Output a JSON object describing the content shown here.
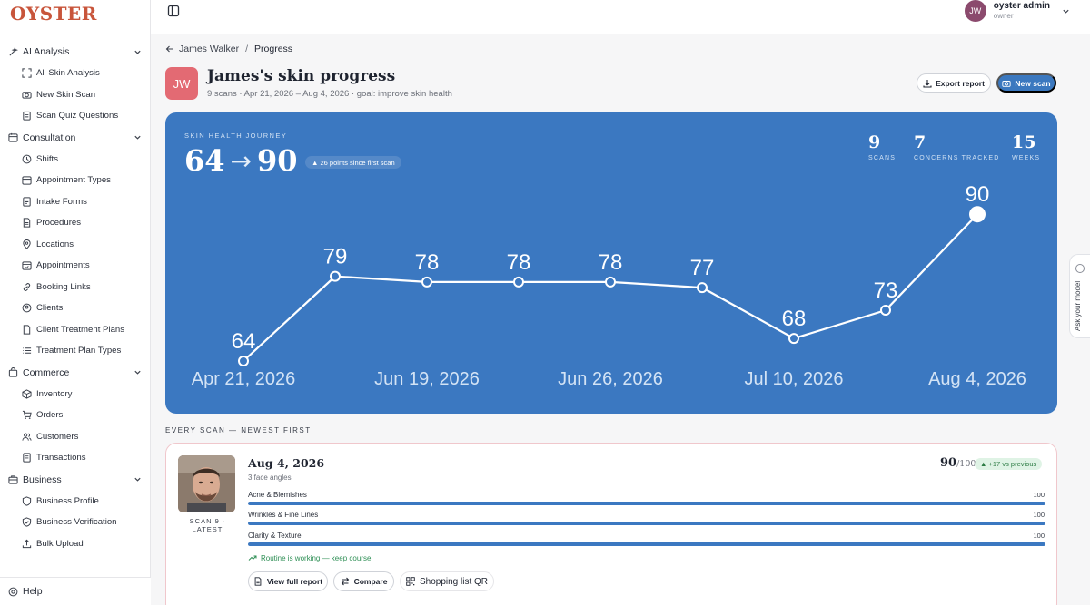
{
  "brand": {
    "logo": "OYSTER"
  },
  "sidebar": {
    "groups": [
      {
        "label": "AI Analysis",
        "icon": "sparkle-icon",
        "items": [
          {
            "label": "All Skin Analysis",
            "icon": "scan-icon"
          },
          {
            "label": "New Skin Scan",
            "icon": "camera-icon"
          },
          {
            "label": "Scan Quiz Questions",
            "icon": "clipboard-icon"
          }
        ]
      },
      {
        "label": "Consultation",
        "icon": "calendar-icon",
        "items": [
          {
            "label": "Shifts",
            "icon": "clock-icon"
          },
          {
            "label": "Appointment Types",
            "icon": "calendar-icon"
          },
          {
            "label": "Intake Forms",
            "icon": "form-icon"
          },
          {
            "label": "Procedures",
            "icon": "document-icon"
          },
          {
            "label": "Locations",
            "icon": "pin-icon"
          },
          {
            "label": "Appointments",
            "icon": "calendar-check-icon"
          },
          {
            "label": "Booking Links",
            "icon": "link-icon"
          },
          {
            "label": "Clients",
            "icon": "user-icon"
          },
          {
            "label": "Client Treatment Plans",
            "icon": "document-icon"
          },
          {
            "label": "Treatment Plan Types",
            "icon": "list-icon"
          }
        ]
      },
      {
        "label": "Commerce",
        "icon": "bag-icon",
        "items": [
          {
            "label": "Inventory",
            "icon": "box-icon"
          },
          {
            "label": "Orders",
            "icon": "cart-icon"
          },
          {
            "label": "Customers",
            "icon": "users-icon"
          },
          {
            "label": "Transactions",
            "icon": "receipt-icon"
          }
        ]
      },
      {
        "label": "Business",
        "icon": "briefcase-icon",
        "items": [
          {
            "label": "Business Profile",
            "icon": "shield-icon"
          },
          {
            "label": "Business Verification",
            "icon": "shield-check-icon"
          },
          {
            "label": "Bulk Upload",
            "icon": "upload-icon"
          }
        ]
      }
    ],
    "help": "Help"
  },
  "topbar": {
    "user_initials": "JW",
    "user_name": "oyster admin",
    "user_role": "owner"
  },
  "breadcrumb": {
    "parent": "James Walker",
    "separator": "/",
    "current": "Progress"
  },
  "header": {
    "initials": "JW",
    "title": "James's skin progress",
    "subtitle": "9 scans · Apr 21, 2026 – Aug 4, 2026 · goal: improve skin health",
    "export_label": "Export report",
    "new_scan_label": "New scan"
  },
  "journey": {
    "label": "SKIN HEALTH JOURNEY",
    "start_score": "64",
    "arrow": "→",
    "end_score": "90",
    "chip": "▲ 26 points since first scan",
    "stats": [
      {
        "value": "9",
        "label": "SCANS"
      },
      {
        "value": "7",
        "label": "CONCERNS TRACKED"
      },
      {
        "value": "15",
        "label": "WEEKS"
      }
    ]
  },
  "chart_data": {
    "type": "line",
    "title": "",
    "xlabel": "",
    "ylabel": "",
    "values": [
      64,
      79,
      78,
      78,
      78,
      77,
      68,
      73,
      90
    ],
    "x_tick_labels": [
      "Apr 21, 2026",
      "Jun 19, 2026",
      "Jun 26, 2026",
      "Jul 10, 2026",
      "Aug 4, 2026"
    ],
    "x_tick_at_point": [
      0,
      2,
      4,
      6,
      8
    ],
    "ylim": [
      55,
      100
    ],
    "grid": false,
    "highlight_last": true,
    "line_color": "#ffffff"
  },
  "scans_section": {
    "label": "EVERY SCAN — NEWEST FIRST"
  },
  "latest_scan": {
    "tag": "SCAN 9 · LATEST",
    "date": "Aug 4, 2026",
    "angles": "3 face angles",
    "score": "90",
    "score_denominator": "/100",
    "delta": "▲ +17 vs previous",
    "metrics": [
      {
        "label": "Acne & Blemishes",
        "value": 100
      },
      {
        "label": "Wrinkles & Fine Lines",
        "value": 100
      },
      {
        "label": "Clarity & Texture",
        "value": 100
      }
    ],
    "routine_note": "Routine is working — keep course",
    "actions": {
      "view_report": "View full report",
      "compare": "Compare",
      "shopping_qr": "Shopping list QR"
    }
  },
  "side_tab": {
    "label": "Ask your model"
  }
}
